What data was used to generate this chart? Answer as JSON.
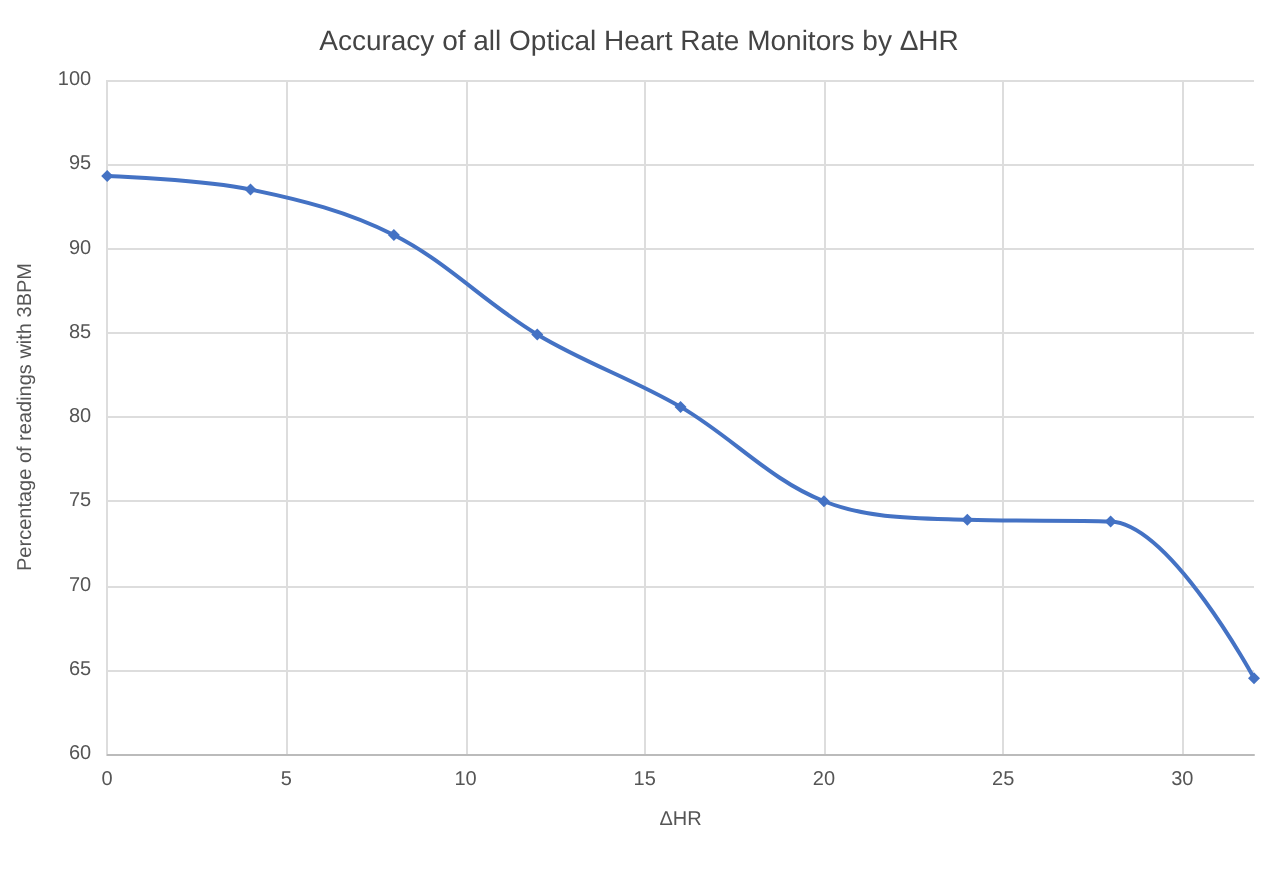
{
  "chart_data": {
    "type": "line",
    "title": "Accuracy of all Optical Heart Rate Monitors by ΔHR",
    "xlabel": "ΔHR",
    "ylabel": "Percentage of readings with 3BPM",
    "x": [
      0,
      4,
      8,
      12,
      16,
      20,
      24,
      28,
      32
    ],
    "series": [
      {
        "color": "#4472c4",
        "values": [
          94.3,
          93.5,
          90.8,
          84.9,
          80.6,
          75.0,
          73.9,
          73.8,
          64.5
        ]
      }
    ],
    "xlim": [
      0,
      32
    ],
    "xticks": [
      0,
      5,
      10,
      15,
      20,
      25,
      30
    ],
    "ylim": [
      60,
      100
    ],
    "yticks": [
      60,
      65,
      70,
      75,
      80,
      85,
      90,
      95,
      100
    ],
    "grid": true,
    "marker": "diamond",
    "line_style": "solid"
  }
}
